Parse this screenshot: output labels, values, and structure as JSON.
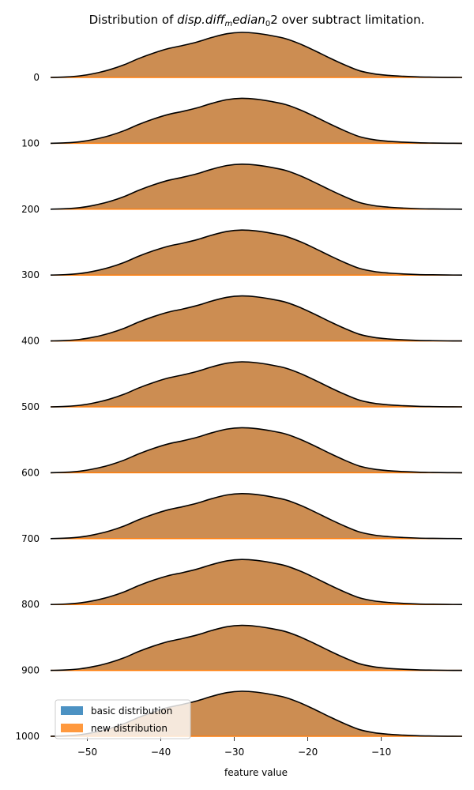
{
  "chart_data": {
    "type": "area",
    "subtype": "ridgeline",
    "title": "Distribution of disp.diff_median_02 over subtract limitation.",
    "title_parts": {
      "prefix": "Distribution of ",
      "italic": "disp.diff",
      "sub_m": "m",
      "italic2": "edian",
      "sub_0": "0",
      "tail": "2 over subtract limitation."
    },
    "xlabel": "feature value",
    "ylabel": "",
    "xlim": [
      -55,
      1
    ],
    "x_ticks": [
      -50,
      -40,
      -30,
      -20,
      -10
    ],
    "x_tick_labels": [
      "−50",
      "−40",
      "−30",
      "−20",
      "−10"
    ],
    "rows": [
      0,
      100,
      200,
      300,
      400,
      500,
      600,
      700,
      800,
      900,
      1000
    ],
    "row_labels": [
      "0",
      "100",
      "200",
      "300",
      "400",
      "500",
      "600",
      "700",
      "800",
      "900",
      "1000"
    ],
    "density_x": [
      -55,
      -53,
      -51,
      -49,
      -47,
      -45,
      -43,
      -41,
      -39,
      -37,
      -35,
      -33,
      -31,
      -29,
      -27,
      -25,
      -23,
      -21,
      -19,
      -17,
      -15,
      -13,
      -11,
      -9,
      -7,
      -5,
      -3,
      -1,
      1
    ],
    "density_y": [
      0.0,
      0.01,
      0.035,
      0.09,
      0.17,
      0.28,
      0.42,
      0.54,
      0.64,
      0.71,
      0.79,
      0.89,
      0.97,
      1.0,
      0.98,
      0.93,
      0.86,
      0.74,
      0.59,
      0.43,
      0.28,
      0.15,
      0.08,
      0.045,
      0.025,
      0.012,
      0.006,
      0.002,
      0.0
    ],
    "series": [
      {
        "name": "basic distribution",
        "color": "#1f77b4"
      },
      {
        "name": "new distribution",
        "color": "#ff7f0e"
      }
    ],
    "fill_color": "#cc8d52",
    "line_color": "#000000",
    "legend_position": "bottom-left",
    "grid": false
  }
}
